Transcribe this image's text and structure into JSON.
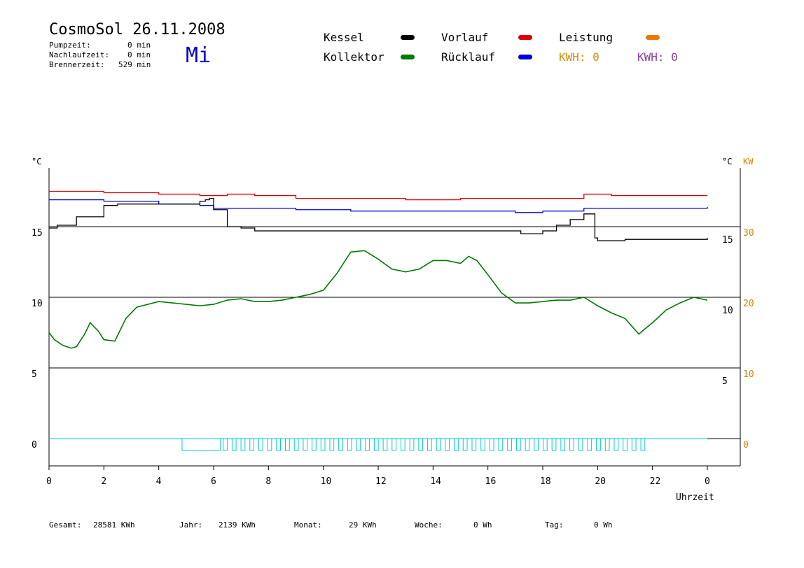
{
  "header": {
    "title": "CosmoSol 26.11.2008",
    "day": "Mi",
    "pump_label": "Pumpzeit:",
    "pump_value": "0 min",
    "nachlauf_label": "Nachlaufzeit:",
    "nachlauf_value": "0 min",
    "brenner_label": "Brennerzeit:",
    "brenner_value": "529 min"
  },
  "legend": {
    "kessel": "Kessel",
    "kollektor": "Kollektor",
    "vorlauf": "Vorlauf",
    "ruecklauf": "Rücklauf",
    "leistung": "Leistung",
    "kwh_orange": "KWH: 0",
    "kwh_purple": "KWH: 0"
  },
  "colors": {
    "kessel": "#000000",
    "kollektor": "#007a00",
    "vorlauf": "#dd0000",
    "ruecklauf": "#0000dd",
    "leistung": "#ee7700",
    "kwh": "#884499",
    "pump": "#00cccc",
    "axis_right_kw": "#cc8800"
  },
  "axes": {
    "left_unit": "°C",
    "right_unit": "°C",
    "right_kw_unit": "KW",
    "xlabel": "Uhrzeit"
  },
  "chart_data": {
    "type": "line",
    "title": "",
    "xlabel": "Uhrzeit",
    "ylabel": "°C",
    "xlim": [
      0,
      24
    ],
    "ylim": [
      -1.5,
      20
    ],
    "x_ticks": [
      "0",
      "2",
      "4",
      "6",
      "8",
      "10",
      "12",
      "14",
      "16",
      "18",
      "20",
      "22",
      "0"
    ],
    "y_ticks_left": [
      "15",
      "10",
      "5",
      "0"
    ],
    "y_ticks_left_values": [
      15,
      10,
      5,
      0
    ],
    "y_ticks_right": [
      "15",
      "10",
      "5"
    ],
    "y_ticks_right_values": [
      14.1,
      9.1,
      4.1
    ],
    "y_ticks_kw": [
      "30",
      "20",
      "10",
      "0"
    ],
    "grid": "horizontal",
    "series": [
      {
        "name": "Kessel",
        "key": "kessel",
        "x": [
          0,
          0.3,
          1,
          2,
          2.5,
          4,
          5,
          5.5,
          5.7,
          5.85,
          6,
          6.5,
          7,
          7.5,
          10,
          14,
          16,
          17,
          17.2,
          18,
          18.5,
          19,
          19.5,
          19.7,
          19.9,
          20,
          21,
          22,
          23,
          24
        ],
        "y": [
          14.9,
          15.1,
          15.7,
          16.5,
          16.6,
          16.6,
          16.6,
          16.8,
          16.9,
          17,
          16.2,
          15,
          14.9,
          14.7,
          14.7,
          14.7,
          14.7,
          14.7,
          14.5,
          14.7,
          15.1,
          15.5,
          15.9,
          15.9,
          14.2,
          14,
          14.1,
          14.1,
          14.1,
          14.2
        ]
      },
      {
        "name": "Kollektor",
        "key": "kollektor",
        "x": [
          0,
          0.2,
          0.5,
          0.8,
          1.0,
          1.3,
          1.5,
          1.8,
          2.0,
          2.4,
          2.8,
          3.2,
          3.6,
          4.0,
          4.5,
          5.0,
          5.5,
          6.0,
          6.5,
          7.0,
          7.5,
          8.0,
          8.5,
          9.0,
          9.5,
          10.0,
          10.5,
          11.0,
          11.5,
          12.0,
          12.5,
          13.0,
          13.5,
          14.0,
          14.5,
          15.0,
          15.3,
          15.6,
          16.0,
          16.5,
          17.0,
          17.5,
          18.0,
          18.5,
          19.0,
          19.5,
          20.0,
          20.5,
          21.0,
          21.5,
          22.0,
          22.5,
          23.0,
          23.5,
          24.0
        ],
        "y": [
          7.5,
          7.0,
          6.6,
          6.4,
          6.5,
          7.4,
          8.2,
          7.6,
          7.0,
          6.9,
          8.5,
          9.3,
          9.5,
          9.7,
          9.6,
          9.5,
          9.4,
          9.5,
          9.8,
          9.9,
          9.7,
          9.7,
          9.8,
          10.0,
          10.2,
          10.5,
          11.7,
          13.2,
          13.3,
          12.7,
          12.0,
          11.8,
          12.0,
          12.6,
          12.6,
          12.4,
          12.9,
          12.6,
          11.6,
          10.3,
          9.6,
          9.6,
          9.7,
          9.8,
          9.8,
          10.0,
          9.4,
          8.9,
          8.5,
          7.4,
          8.2,
          9.1,
          9.6,
          10.0,
          9.8
        ]
      },
      {
        "name": "Vorlauf",
        "key": "vorlauf",
        "x": [
          0,
          2,
          4,
          5.5,
          6.5,
          7.5,
          9,
          11,
          13,
          15,
          17,
          19.5,
          20.5,
          22,
          24
        ],
        "y": [
          17.5,
          17.4,
          17.3,
          17.2,
          17.3,
          17.2,
          17.0,
          17.0,
          16.9,
          17.0,
          17.0,
          17.3,
          17.2,
          17.2,
          17.2
        ]
      },
      {
        "name": "Rücklauf",
        "key": "ruecklauf",
        "x": [
          0,
          2,
          4,
          5.5,
          6,
          7,
          9,
          11,
          13,
          15,
          17,
          18,
          19.5,
          20.5,
          22,
          24
        ],
        "y": [
          16.9,
          16.8,
          16.6,
          16.5,
          16.3,
          16.3,
          16.2,
          16.1,
          16.1,
          16.1,
          16.0,
          16.1,
          16.3,
          16.3,
          16.3,
          16.4
        ]
      }
    ],
    "pump_activity": {
      "name": "Pumpe",
      "solid_block": [
        4.85,
        6.25
      ],
      "pulse_start": 6.35,
      "pulse_end": 21.9,
      "pulse_count": 48,
      "level": 0
    }
  },
  "footer": {
    "gesamt_label": "Gesamt:",
    "gesamt_value": "28581 KWh",
    "jahr_label": "Jahr:",
    "jahr_value": "2139 KWh",
    "monat_label": "Monat:",
    "monat_value": "29 KWh",
    "woche_label": "Woche:",
    "woche_value": "0 Wh",
    "tag_label": "Tag:",
    "tag_value": "0 Wh"
  }
}
